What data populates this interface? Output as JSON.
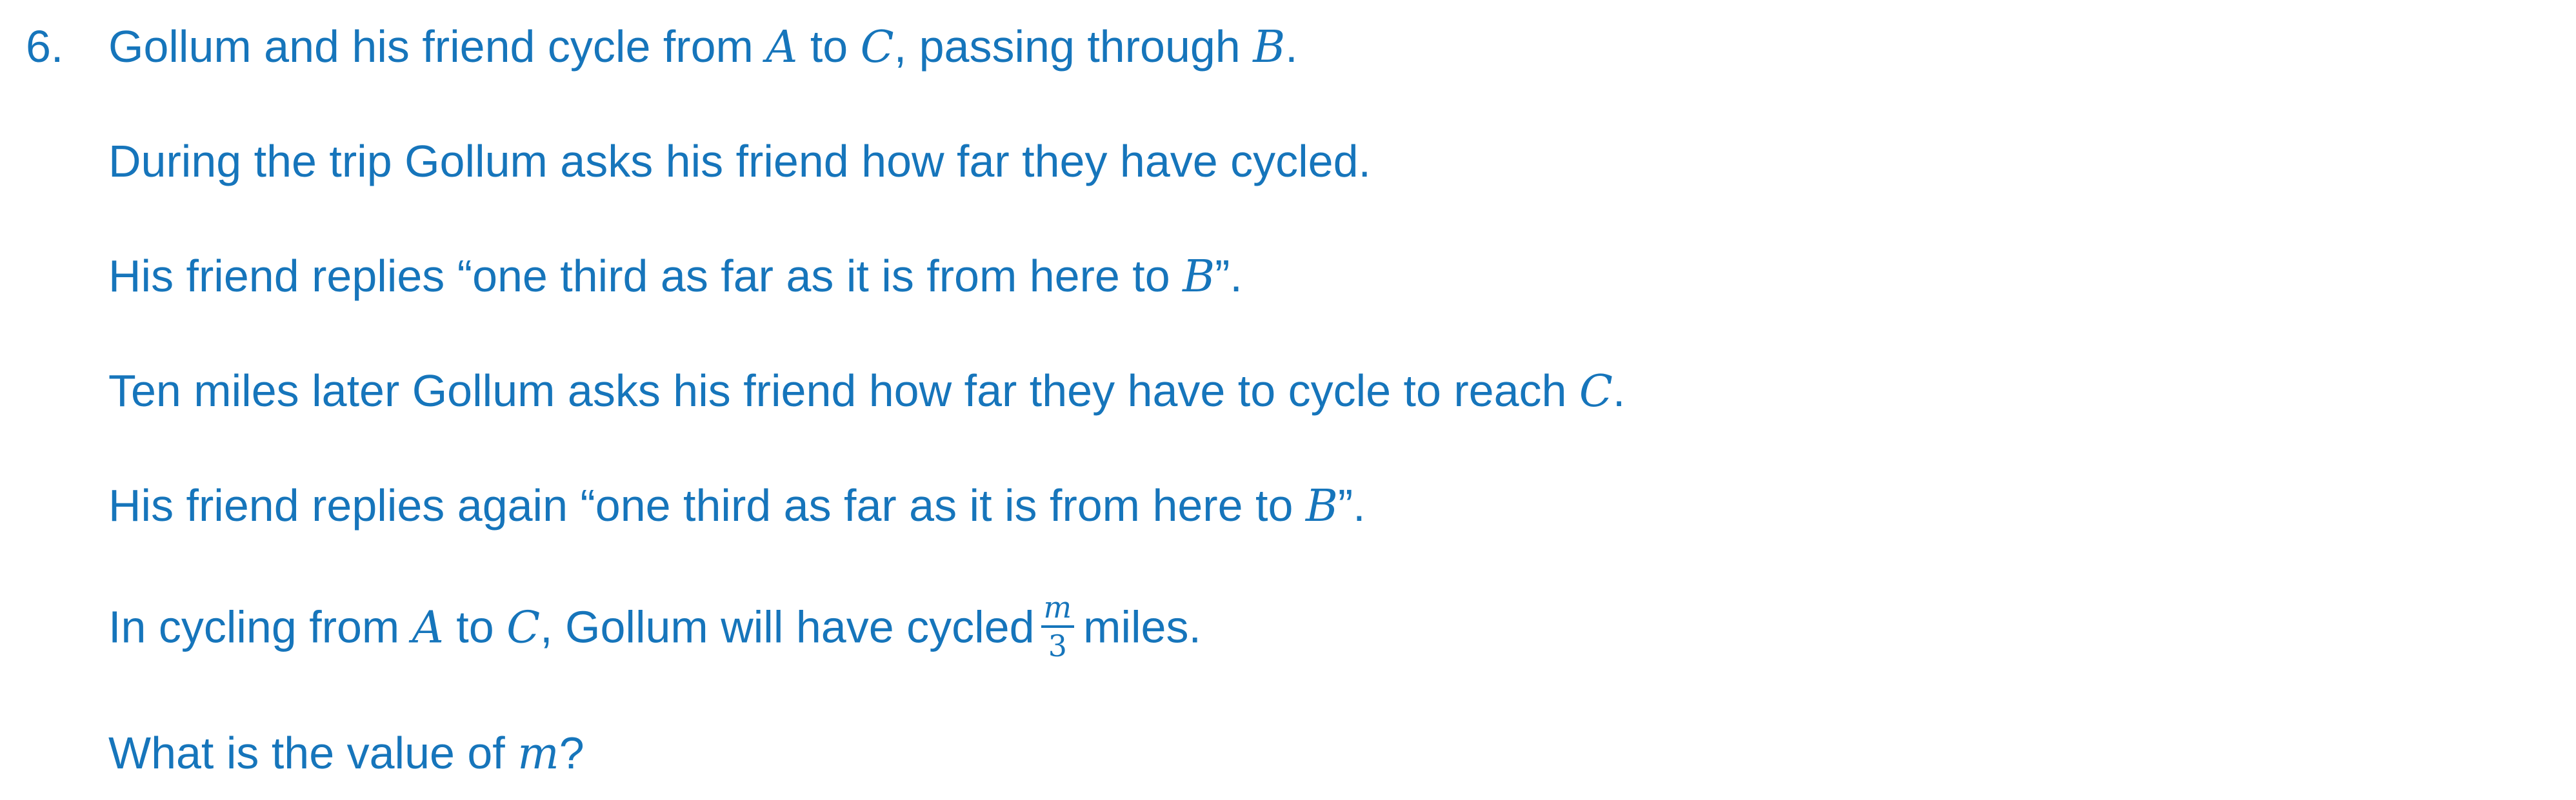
{
  "question": {
    "number": "6.",
    "line1": {
      "t1": "Gollum and his friend cycle from ",
      "v1": "A",
      "t2": " to ",
      "v2": "C",
      "t3": ", passing through ",
      "v3": "B",
      "t4": "."
    },
    "line2": "During the trip Gollum asks his friend how far they have cycled.",
    "line3": {
      "t1": "His friend replies “one third as far as it is from here to ",
      "v1": "B",
      "t2": "”."
    },
    "line4": {
      "t1": "Ten miles later Gollum asks his friend how far they have to cycle to reach ",
      "v1": "C",
      "t2": "."
    },
    "line5": {
      "t1": "His friend replies again “one third as far as it is from here to ",
      "v1": "B",
      "t2": "”."
    },
    "line6": {
      "t1": "In cycling from ",
      "v1": "A",
      "t2": " to ",
      "v2": "C",
      "t3": ", Gollum will have cycled",
      "frac_num": "m",
      "frac_den": "3",
      "t4": "miles."
    },
    "line7": {
      "t1": "What is the value of ",
      "v1": "m",
      "t2": "?"
    }
  },
  "colors": {
    "text": "#1675BB",
    "background": "#FFFFFF"
  }
}
